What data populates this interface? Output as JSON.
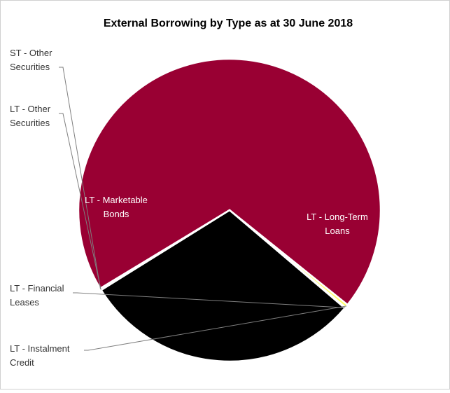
{
  "chart_data": {
    "type": "pie",
    "title": "External Borrowing by Type as at 30 June 2018",
    "slices": [
      {
        "label_lines": [
          "ST - Other",
          "Securities"
        ],
        "value": 0.1,
        "color": "#5b5b5b"
      },
      {
        "label_lines": [
          "LT - Long-Term",
          "Loans"
        ],
        "value": 69.4,
        "color": "#990033"
      },
      {
        "label_lines": [
          "LT - Instalment",
          "Credit"
        ],
        "value": 0.35,
        "color": "#ffff66"
      },
      {
        "label_lines": [
          "LT - Financial",
          "Leases"
        ],
        "value": 0.1,
        "color": "#3a3a3a"
      },
      {
        "label_lines": [
          "LT - Marketable",
          "Bonds"
        ],
        "value": 29.95,
        "color": "#000000"
      },
      {
        "label_lines": [
          "LT - Other",
          "Securities"
        ],
        "value": 0.1,
        "color": "#2a2a2a"
      }
    ],
    "legend": "none"
  }
}
